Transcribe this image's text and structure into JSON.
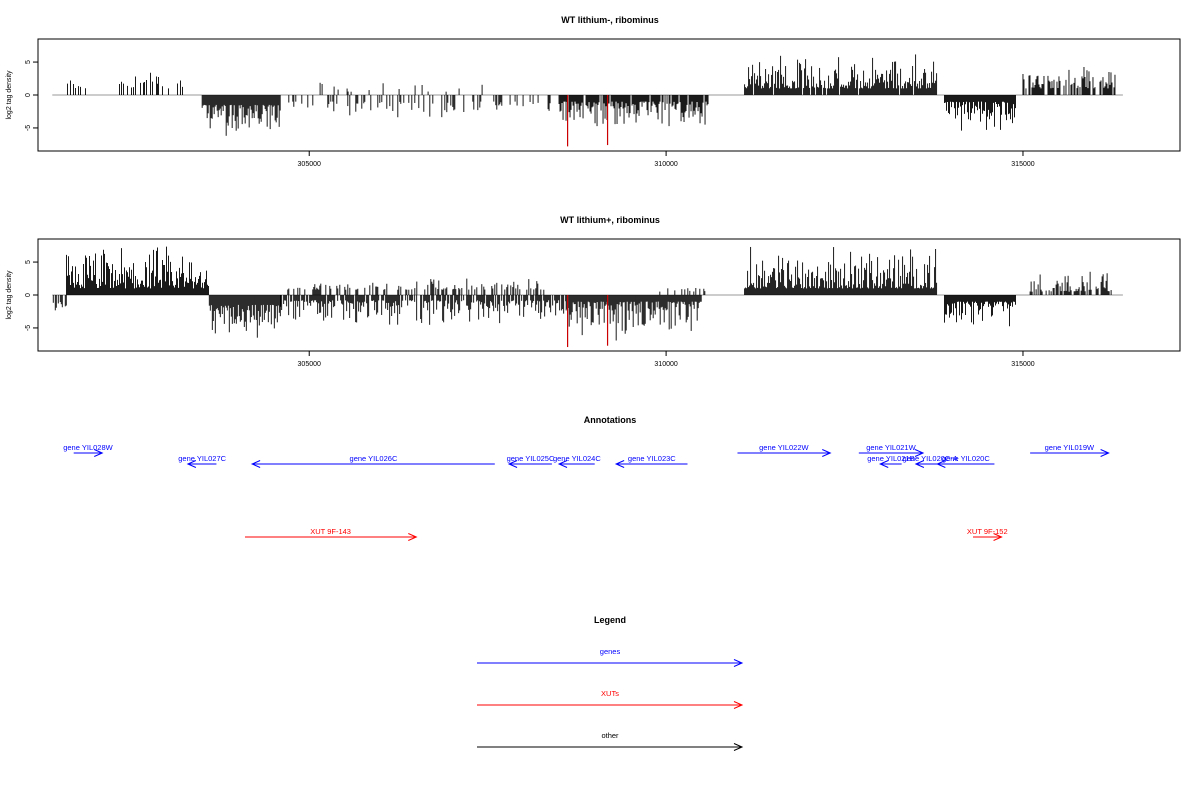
{
  "colors": {
    "gene": "#0000ff",
    "xut": "#ff0000",
    "other": "#000000",
    "bar": "#000000",
    "highlight_bar": "#cc0000",
    "axis": "#000000"
  },
  "chart_data": [
    {
      "type": "bar",
      "title": "WT lithium-, ribominus",
      "ylabel": "log2 tag density",
      "xlim": [
        301200,
        317200
      ],
      "ylim": [
        -8.5,
        8.5
      ],
      "xticks": [
        305000,
        310000,
        315000
      ],
      "xtick_labels": [
        "305000",
        "310000",
        "315000"
      ],
      "yticks": [
        5,
        0,
        -5
      ],
      "ytick_labels": [
        "5",
        "0",
        "-5"
      ],
      "baseline": 0,
      "baseline_range": [
        301400,
        316400
      ],
      "segments": [
        {
          "start": 301600,
          "end": 301900,
          "sign": 1,
          "min": 1.0,
          "max": 2.8,
          "density": 0.35
        },
        {
          "start": 302300,
          "end": 303300,
          "sign": 1,
          "min": 1.0,
          "max": 4.8,
          "density": 0.35
        },
        {
          "start": 303500,
          "end": 304600,
          "sign": -1,
          "min": 1.5,
          "max": 7.5,
          "density": 1.0
        },
        {
          "start": 304700,
          "end": 307700,
          "sign": -1,
          "min": 1.0,
          "max": 4.0,
          "density": 0.3
        },
        {
          "start": 304900,
          "end": 307500,
          "sign": 1,
          "min": 0.5,
          "max": 3.5,
          "density": 0.06
        },
        {
          "start": 307800,
          "end": 308400,
          "sign": -1,
          "min": 1.0,
          "max": 3.0,
          "density": 0.3
        },
        {
          "start": 308500,
          "end": 310600,
          "sign": -1,
          "min": 1.0,
          "max": 5.5,
          "density": 0.9
        },
        {
          "start": 311100,
          "end": 313800,
          "sign": 1,
          "min": 1.0,
          "max": 6.5,
          "density": 0.95
        },
        {
          "start": 313900,
          "end": 314900,
          "sign": -1,
          "min": 1.0,
          "max": 6.0,
          "density": 1.0
        },
        {
          "start": 315000,
          "end": 316300,
          "sign": 1,
          "min": 1.0,
          "max": 4.5,
          "density": 0.7
        }
      ],
      "highlights": [
        {
          "x": 308620,
          "y": -7.8
        },
        {
          "x": 309180,
          "y": -7.6
        }
      ]
    },
    {
      "type": "bar",
      "title": "WT lithium+, ribominus",
      "ylabel": "log2 tag density",
      "xlim": [
        301200,
        317200
      ],
      "ylim": [
        -8.5,
        8.5
      ],
      "xticks": [
        305000,
        310000,
        315000
      ],
      "xtick_labels": [
        "305000",
        "310000",
        "315000"
      ],
      "yticks": [
        5,
        0,
        -5
      ],
      "ytick_labels": [
        "5",
        "0",
        "-5"
      ],
      "baseline": 0,
      "baseline_range": [
        301400,
        316400
      ],
      "segments": [
        {
          "start": 301400,
          "end": 301600,
          "sign": -1,
          "min": 1.0,
          "max": 2.5,
          "density": 0.8
        },
        {
          "start": 301600,
          "end": 303600,
          "sign": 1,
          "min": 1.0,
          "max": 8.0,
          "density": 1.0
        },
        {
          "start": 303600,
          "end": 304600,
          "sign": -1,
          "min": 1.5,
          "max": 7.5,
          "density": 1.0
        },
        {
          "start": 304600,
          "end": 308600,
          "sign": -1,
          "min": 0.8,
          "max": 4.8,
          "density": 0.8
        },
        {
          "start": 304700,
          "end": 308300,
          "sign": 1,
          "min": 0.8,
          "max": 2.8,
          "density": 0.35
        },
        {
          "start": 308600,
          "end": 310500,
          "sign": -1,
          "min": 1.0,
          "max": 7.5,
          "density": 1.0
        },
        {
          "start": 309800,
          "end": 310700,
          "sign": 1,
          "min": 0.5,
          "max": 1.5,
          "density": 0.2
        },
        {
          "start": 311100,
          "end": 313800,
          "sign": 1,
          "min": 1.0,
          "max": 7.8,
          "density": 1.0
        },
        {
          "start": 313900,
          "end": 314900,
          "sign": -1,
          "min": 1.0,
          "max": 5.5,
          "density": 1.0
        },
        {
          "start": 315100,
          "end": 316300,
          "sign": 1,
          "min": 0.5,
          "max": 3.8,
          "density": 0.6
        }
      ],
      "highlights": [
        {
          "x": 308620,
          "y": -7.9
        },
        {
          "x": 309180,
          "y": -7.7
        }
      ]
    }
  ],
  "annotations": {
    "title": "Annotations",
    "xlim": [
      301200,
      317200
    ],
    "features": [
      {
        "label": "gene YIL028W",
        "kind": "gene",
        "start": 301700,
        "end": 302100,
        "strand": "+",
        "row": 1
      },
      {
        "label": "gene YIL027C",
        "kind": "gene",
        "start": 303300,
        "end": 303700,
        "strand": "-",
        "row": 0
      },
      {
        "label": "gene YIL026C",
        "kind": "gene",
        "start": 304200,
        "end": 307600,
        "strand": "-",
        "row": 0
      },
      {
        "label": "gene YIL025C",
        "kind": "gene",
        "start": 307800,
        "end": 308400,
        "strand": "-",
        "row": 0
      },
      {
        "label": "gene YIL024C",
        "kind": "gene",
        "start": 308500,
        "end": 309000,
        "strand": "-",
        "row": 0
      },
      {
        "label": "gene YIL023C",
        "kind": "gene",
        "start": 309300,
        "end": 310300,
        "strand": "-",
        "row": 0
      },
      {
        "label": "gene YIL022W",
        "kind": "gene",
        "start": 311000,
        "end": 312300,
        "strand": "+",
        "row": 1
      },
      {
        "label": "gene YIL021W",
        "kind": "gene",
        "start": 312700,
        "end": 313600,
        "strand": "+",
        "row": 1
      },
      {
        "label": "gene YIL021B",
        "kind": "gene",
        "start": 313000,
        "end": 313300,
        "strand": "-",
        "row": 0
      },
      {
        "label": "gene YIL020C-A",
        "kind": "gene",
        "start": 313500,
        "end": 313900,
        "strand": "-",
        "row": 0
      },
      {
        "label": "gene YIL020C",
        "kind": "gene",
        "start": 313800,
        "end": 314600,
        "strand": "-",
        "row": 0
      },
      {
        "label": "gene YIL019W",
        "kind": "gene",
        "start": 315100,
        "end": 316200,
        "strand": "+",
        "row": 1
      },
      {
        "label": "XUT 9F-143",
        "kind": "xut",
        "start": 304100,
        "end": 306500,
        "strand": "+",
        "row": 2
      },
      {
        "label": "XUT 9F-152",
        "kind": "xut",
        "start": 314300,
        "end": 314700,
        "strand": "+",
        "row": 2
      }
    ]
  },
  "legend": {
    "title": "Legend",
    "items": [
      {
        "label": "genes",
        "kind": "gene"
      },
      {
        "label": "XUTs",
        "kind": "xut"
      },
      {
        "label": "other",
        "kind": "other"
      }
    ]
  }
}
